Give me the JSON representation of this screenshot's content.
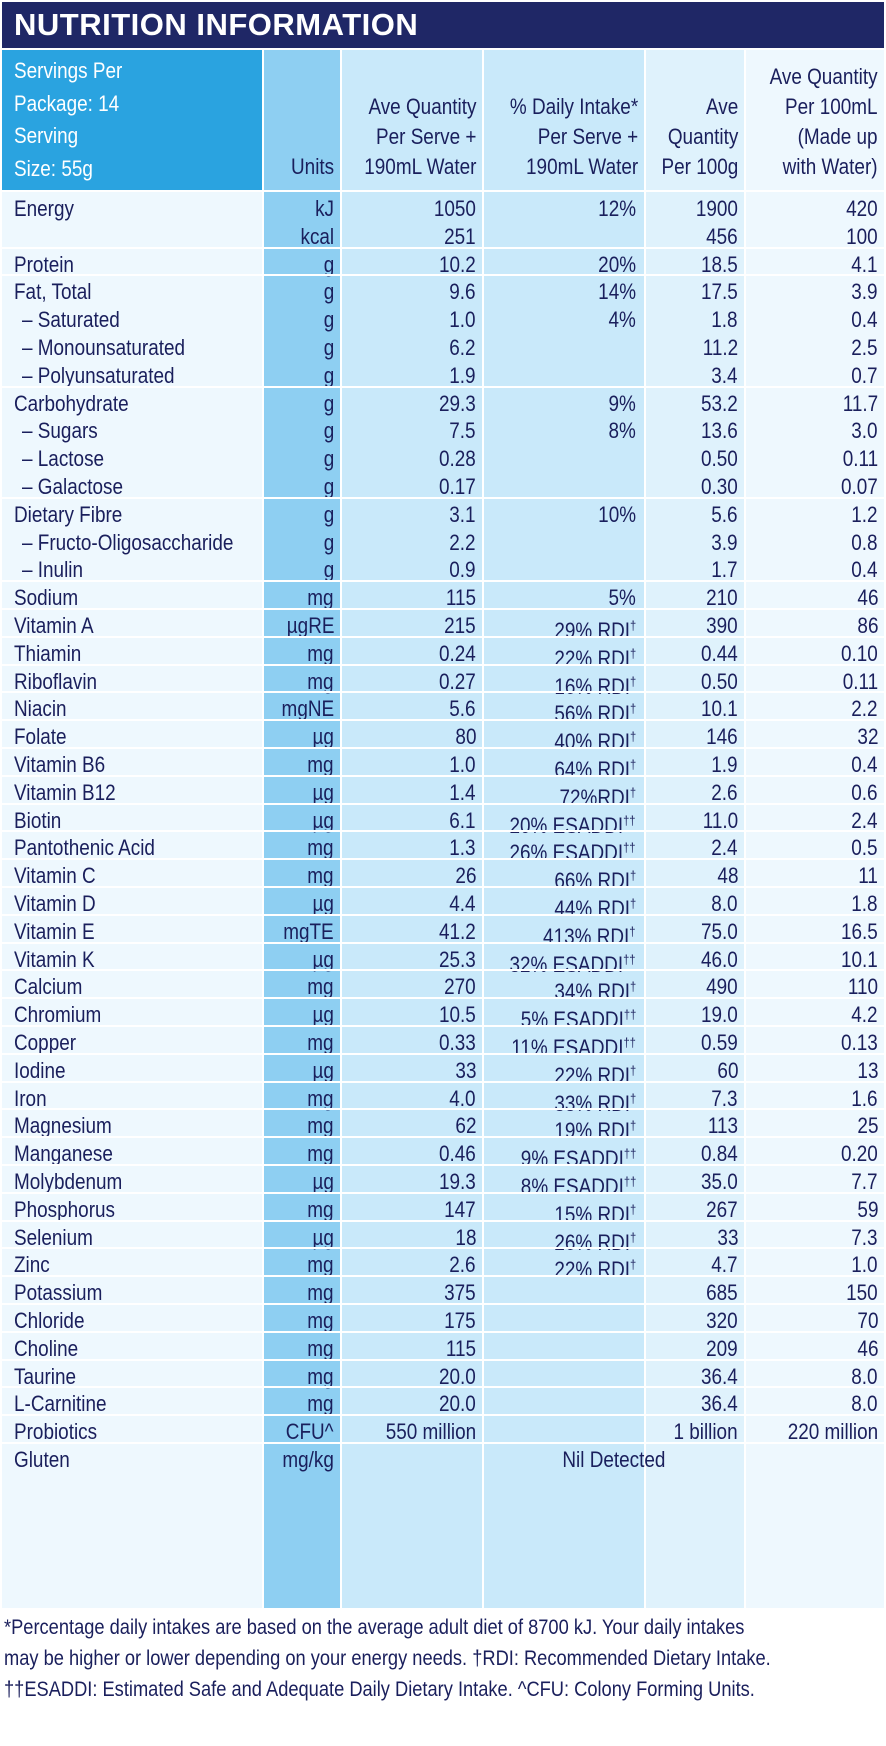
{
  "title": "NUTRITION INFORMATION",
  "servings": [
    "Servings Per",
    "Package: 14",
    "Serving",
    "Size: 55g"
  ],
  "headers": {
    "units": "Units",
    "per_serve": "Ave Quantity\nPer Serve +\n190mL Water",
    "daily_intake": "% Daily Intake*\nPer Serve +\n190mL Water",
    "per_100g": "Ave\nQuantity\nPer 100g",
    "per_100ml": "Ave Quantity\nPer 100mL\n(Made up\nwith Water)"
  },
  "rows": [
    {
      "name": "Energy",
      "unit": "kJ",
      "serve": "1050",
      "di": "12%",
      "g100": "1900",
      "ml100": "420",
      "group_start": true
    },
    {
      "name": "",
      "unit": "kcal",
      "serve": "251",
      "di": "",
      "g100": "456",
      "ml100": "100"
    },
    {
      "name": "Protein",
      "unit": "g",
      "serve": "10.2",
      "di": "20%",
      "g100": "18.5",
      "ml100": "4.1",
      "group_start": true
    },
    {
      "name": "Fat, Total",
      "unit": "g",
      "serve": "9.6",
      "di": "14%",
      "g100": "17.5",
      "ml100": "3.9",
      "group_start": true
    },
    {
      "name": "– Saturated",
      "unit": "g",
      "serve": "1.0",
      "di": "4%",
      "g100": "1.8",
      "ml100": "0.4",
      "sub": true
    },
    {
      "name": "– Monounsaturated",
      "unit": "g",
      "serve": "6.2",
      "di": "",
      "g100": "11.2",
      "ml100": "2.5",
      "sub": true
    },
    {
      "name": "– Polyunsaturated",
      "unit": "g",
      "serve": "1.9",
      "di": "",
      "g100": "3.4",
      "ml100": "0.7",
      "sub": true
    },
    {
      "name": "Carbohydrate",
      "unit": "g",
      "serve": "29.3",
      "di": "9%",
      "g100": "53.2",
      "ml100": "11.7",
      "group_start": true
    },
    {
      "name": "– Sugars",
      "unit": "g",
      "serve": "7.5",
      "di": "8%",
      "g100": "13.6",
      "ml100": "3.0",
      "sub": true
    },
    {
      "name": "– Lactose",
      "unit": "g",
      "serve": "0.28",
      "di": "",
      "g100": "0.50",
      "ml100": "0.11",
      "sub": true
    },
    {
      "name": "– Galactose",
      "unit": "g",
      "serve": "0.17",
      "di": "",
      "g100": "0.30",
      "ml100": "0.07",
      "sub": true
    },
    {
      "name": "Dietary Fibre",
      "unit": "g",
      "serve": "3.1",
      "di": "10%",
      "g100": "5.6",
      "ml100": "1.2",
      "group_start": true
    },
    {
      "name": "– Fructo-Oligosaccharide",
      "unit": "g",
      "serve": "2.2",
      "di": "",
      "g100": "3.9",
      "ml100": "0.8",
      "sub": true
    },
    {
      "name": "– Inulin",
      "unit": "g",
      "serve": "0.9",
      "di": "",
      "g100": "1.7",
      "ml100": "0.4",
      "sub": true
    },
    {
      "name": "Sodium",
      "unit": "mg",
      "serve": "115",
      "di": "5%",
      "g100": "210",
      "ml100": "46",
      "group_start": true
    },
    {
      "name": "Vitamin A",
      "unit": "µgRE",
      "serve": "215",
      "di": "29% RDI",
      "mark": "†",
      "g100": "390",
      "ml100": "86",
      "group_start": true
    },
    {
      "name": "Thiamin",
      "unit": "mg",
      "serve": "0.24",
      "di": "22% RDI",
      "mark": "†",
      "g100": "0.44",
      "ml100": "0.10",
      "group_start": true
    },
    {
      "name": "Riboflavin",
      "unit": "mg",
      "serve": "0.27",
      "di": "16% RDI",
      "mark": "†",
      "g100": "0.50",
      "ml100": "0.11",
      "group_start": true
    },
    {
      "name": "Niacin",
      "unit": "mgNE",
      "serve": "5.6",
      "di": "56% RDI",
      "mark": "†",
      "g100": "10.1",
      "ml100": "2.2",
      "group_start": true
    },
    {
      "name": "Folate",
      "unit": "µg",
      "serve": "80",
      "di": "40% RDI",
      "mark": "†",
      "g100": "146",
      "ml100": "32",
      "group_start": true
    },
    {
      "name": "Vitamin B6",
      "unit": "mg",
      "serve": "1.0",
      "di": "64% RDI",
      "mark": "†",
      "g100": "1.9",
      "ml100": "0.4",
      "group_start": true
    },
    {
      "name": "Vitamin B12",
      "unit": "µg",
      "serve": "1.4",
      "di": "72%RDI",
      "mark": "†",
      "g100": "2.6",
      "ml100": "0.6",
      "group_start": true
    },
    {
      "name": "Biotin",
      "unit": "µg",
      "serve": "6.1",
      "di": "20% ESADDI",
      "mark": "††",
      "g100": "11.0",
      "ml100": "2.4",
      "group_start": true
    },
    {
      "name": "Pantothenic Acid",
      "unit": "mg",
      "serve": "1.3",
      "di": "26% ESADDI",
      "mark": "††",
      "g100": "2.4",
      "ml100": "0.5",
      "group_start": true
    },
    {
      "name": "Vitamin C",
      "unit": "mg",
      "serve": "26",
      "di": "66% RDI",
      "mark": "†",
      "g100": "48",
      "ml100": "11",
      "group_start": true
    },
    {
      "name": "Vitamin D",
      "unit": "µg",
      "serve": "4.4",
      "di": "44% RDI",
      "mark": "†",
      "g100": "8.0",
      "ml100": "1.8",
      "group_start": true
    },
    {
      "name": "Vitamin E",
      "unit": "mgTE",
      "serve": "41.2",
      "di": "413% RDI",
      "mark": "†",
      "g100": "75.0",
      "ml100": "16.5",
      "group_start": true
    },
    {
      "name": "Vitamin K",
      "unit": "µg",
      "serve": "25.3",
      "di": "32% ESADDI",
      "mark": "††",
      "g100": "46.0",
      "ml100": "10.1",
      "group_start": true
    },
    {
      "name": "Calcium",
      "unit": "mg",
      "serve": "270",
      "di": "34% RDI",
      "mark": "†",
      "g100": "490",
      "ml100": "110",
      "group_start": true
    },
    {
      "name": "Chromium",
      "unit": "µg",
      "serve": "10.5",
      "di": "5% ESADDI",
      "mark": "††",
      "g100": "19.0",
      "ml100": "4.2",
      "group_start": true
    },
    {
      "name": "Copper",
      "unit": "mg",
      "serve": "0.33",
      "di": "11% ESADDI",
      "mark": "††",
      "g100": "0.59",
      "ml100": "0.13",
      "group_start": true
    },
    {
      "name": "Iodine",
      "unit": "µg",
      "serve": "33",
      "di": "22% RDI",
      "mark": "†",
      "g100": "60",
      "ml100": "13",
      "group_start": true
    },
    {
      "name": "Iron",
      "unit": "mg",
      "serve": "4.0",
      "di": "33% RDI",
      "mark": "†",
      "g100": "7.3",
      "ml100": "1.6",
      "group_start": true
    },
    {
      "name": "Magnesium",
      "unit": "mg",
      "serve": "62",
      "di": "19% RDI",
      "mark": "†",
      "g100": "113",
      "ml100": "25",
      "group_start": true
    },
    {
      "name": "Manganese",
      "unit": "mg",
      "serve": "0.46",
      "di": "9% ESADDI",
      "mark": "††",
      "g100": "0.84",
      "ml100": "0.20",
      "group_start": true
    },
    {
      "name": "Molybdenum",
      "unit": "µg",
      "serve": "19.3",
      "di": "8% ESADDI",
      "mark": "††",
      "g100": "35.0",
      "ml100": "7.7",
      "group_start": true
    },
    {
      "name": "Phosphorus",
      "unit": "mg",
      "serve": "147",
      "di": "15% RDI",
      "mark": "†",
      "g100": "267",
      "ml100": "59",
      "group_start": true
    },
    {
      "name": "Selenium",
      "unit": "µg",
      "serve": "18",
      "di": "26% RDI",
      "mark": "†",
      "g100": "33",
      "ml100": "7.3",
      "group_start": true
    },
    {
      "name": "Zinc",
      "unit": "mg",
      "serve": "2.6",
      "di": "22% RDI",
      "mark": "†",
      "g100": "4.7",
      "ml100": "1.0",
      "group_start": true
    },
    {
      "name": "Potassium",
      "unit": "mg",
      "serve": "375",
      "di": "",
      "g100": "685",
      "ml100": "150",
      "group_start": true
    },
    {
      "name": "Chloride",
      "unit": "mg",
      "serve": "175",
      "di": "",
      "g100": "320",
      "ml100": "70",
      "group_start": true
    },
    {
      "name": "Choline",
      "unit": "mg",
      "serve": "115",
      "di": "",
      "g100": "209",
      "ml100": "46",
      "group_start": true
    },
    {
      "name": "Taurine",
      "unit": "mg",
      "serve": "20.0",
      "di": "",
      "g100": "36.4",
      "ml100": "8.0",
      "group_start": true
    },
    {
      "name": "L-Carnitine",
      "unit": "mg",
      "serve": "20.0",
      "di": "",
      "g100": "36.4",
      "ml100": "8.0",
      "group_start": true
    },
    {
      "name": "Probiotics",
      "unit": "CFU^",
      "serve": "550 million",
      "di": "",
      "g100": "1 billion",
      "ml100": "220 million",
      "group_start": true
    },
    {
      "name": "Gluten",
      "unit": "mg/kg",
      "merged": "Nil Detected",
      "group_start": true
    }
  ],
  "footnote": [
    "*Percentage daily intakes are based on the average adult diet of 8700 kJ. Your daily intakes",
    "may be higher or lower depending on your energy needs. †RDI: Recommended Dietary Intake.",
    "††ESADDI: Estimated Safe and Adequate Daily Dietary Intake. ^CFU: Colony Forming Units."
  ]
}
